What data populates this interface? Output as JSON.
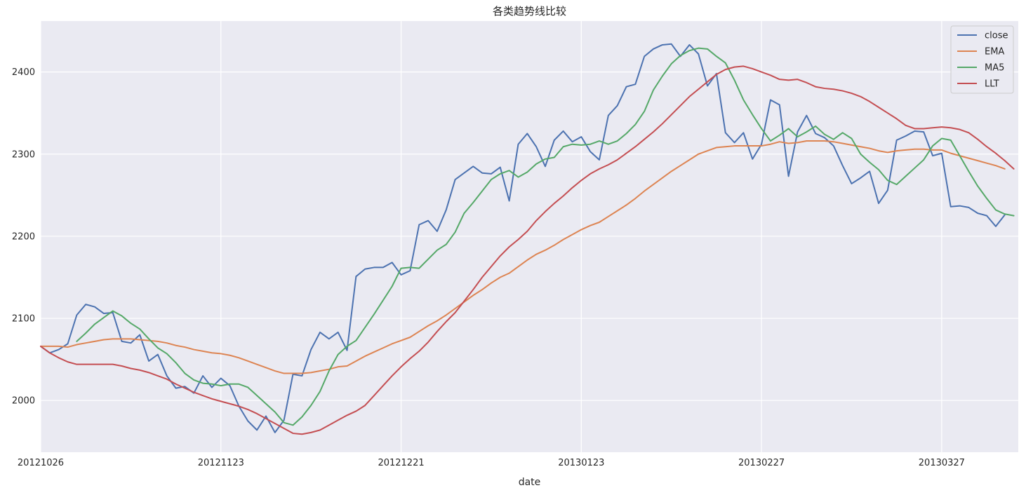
{
  "chart_data": {
    "type": "line",
    "title": "各类趋势线比较",
    "xlabel": "date",
    "ylabel": "",
    "xlim": [
      0,
      108.5
    ],
    "ylim": [
      1937,
      2462
    ],
    "x_ticks": [
      {
        "index": 0,
        "label": "20121026"
      },
      {
        "index": 20,
        "label": "20121123"
      },
      {
        "index": 40,
        "label": "20121221"
      },
      {
        "index": 60,
        "label": "20130123"
      },
      {
        "index": 80,
        "label": "20130227"
      },
      {
        "index": 100,
        "label": "20130327"
      }
    ],
    "y_ticks": [
      2000,
      2100,
      2200,
      2300,
      2400
    ],
    "grid": true,
    "legend_position": "top-right",
    "colors": {
      "background": "#eaeaf2",
      "close": "#4c72b0",
      "EMA": "#dd8452",
      "MA5": "#55a868",
      "LLT": "#c44e52"
    },
    "series": [
      {
        "name": "close",
        "color": "#4c72b0",
        "start": 0,
        "values": [
          2066,
          2058,
          2062,
          2069,
          2104,
          2117,
          2114,
          2106,
          2107,
          2072,
          2070,
          2080,
          2048,
          2056,
          2030,
          2015,
          2017,
          2009,
          2030,
          2016,
          2027,
          2018,
          1993,
          1975,
          1964,
          1981,
          1961,
          1976,
          2032,
          2030,
          2062,
          2083,
          2075,
          2083,
          2061,
          2151,
          2160,
          2162,
          2162,
          2168,
          2153,
          2158,
          2214,
          2219,
          2206,
          2232,
          2269,
          2277,
          2285,
          2277,
          2276,
          2284,
          2243,
          2312,
          2325,
          2309,
          2285,
          2317,
          2328,
          2315,
          2321,
          2303,
          2293,
          2347,
          2359,
          2382,
          2385,
          2419,
          2428,
          2433,
          2434,
          2419,
          2433,
          2422,
          2383,
          2398,
          2326,
          2314,
          2326,
          2294,
          2312,
          2366,
          2360,
          2273,
          2327,
          2347,
          2325,
          2320,
          2310,
          2286,
          2264,
          2271,
          2279,
          2240,
          2256,
          2317,
          2322,
          2328,
          2327,
          2298,
          2301,
          2236,
          2237,
          2235,
          2228,
          2225,
          2212,
          2226
        ]
      },
      {
        "name": "EMA",
        "color": "#dd8452",
        "start": 0,
        "values": [
          2066,
          2066,
          2066,
          2065,
          2068,
          2070,
          2072,
          2074,
          2075,
          2075,
          2075,
          2074,
          2073,
          2072,
          2070,
          2067,
          2065,
          2062,
          2060,
          2058,
          2057,
          2055,
          2052,
          2048,
          2044,
          2040,
          2036,
          2033,
          2033,
          2033,
          2034,
          2036,
          2038,
          2041,
          2042,
          2048,
          2054,
          2059,
          2064,
          2069,
          2073,
          2077,
          2084,
          2091,
          2097,
          2104,
          2112,
          2120,
          2128,
          2135,
          2143,
          2150,
          2155,
          2163,
          2171,
          2178,
          2183,
          2189,
          2196,
          2202,
          2208,
          2213,
          2217,
          2224,
          2231,
          2238,
          2246,
          2255,
          2263,
          2271,
          2279,
          2286,
          2293,
          2300,
          2304,
          2308,
          2309,
          2310,
          2310,
          2310,
          2310,
          2312,
          2315,
          2313,
          2314,
          2316,
          2316,
          2316,
          2315,
          2313,
          2311,
          2309,
          2307,
          2304,
          2302,
          2304,
          2305,
          2306,
          2306,
          2305,
          2305,
          2301,
          2298,
          2295,
          2292,
          2289,
          2286,
          2282
        ]
      },
      {
        "name": "MA5",
        "color": "#55a868",
        "start": 4,
        "values": [
          2072,
          2082,
          2093,
          2101,
          2109,
          2103,
          2094,
          2087,
          2075,
          2064,
          2057,
          2046,
          2033,
          2025,
          2021,
          2020,
          2018,
          2020,
          2020,
          2016,
          2006,
          1996,
          1986,
          1973,
          1970,
          1980,
          1994,
          2011,
          2036,
          2056,
          2066,
          2073,
          2089,
          2105,
          2122,
          2139,
          2161,
          2162,
          2161,
          2172,
          2183,
          2190,
          2205,
          2228,
          2241,
          2255,
          2269,
          2276,
          2280,
          2272,
          2278,
          2288,
          2294,
          2296,
          2309,
          2312,
          2311,
          2312,
          2316,
          2312,
          2316,
          2325,
          2336,
          2352,
          2378,
          2395,
          2410,
          2420,
          2426,
          2429,
          2428,
          2419,
          2411,
          2390,
          2366,
          2348,
          2331,
          2316,
          2323,
          2331,
          2321,
          2327,
          2334,
          2324,
          2318,
          2326,
          2319,
          2300,
          2290,
          2281,
          2268,
          2263,
          2273,
          2283,
          2293,
          2310,
          2319,
          2317,
          2298,
          2279,
          2261,
          2246,
          2232,
          2227,
          2225
        ]
      },
      {
        "name": "LLT",
        "color": "#c44e52",
        "start": 0,
        "values": [
          2066,
          2058,
          2052,
          2047,
          2044,
          2044,
          2044,
          2044,
          2044,
          2042,
          2039,
          2037,
          2034,
          2030,
          2026,
          2020,
          2015,
          2010,
          2006,
          2002,
          1999,
          1996,
          1993,
          1989,
          1984,
          1978,
          1972,
          1966,
          1960,
          1959,
          1961,
          1964,
          1970,
          1976,
          1982,
          1987,
          1994,
          2006,
          2018,
          2030,
          2041,
          2051,
          2060,
          2071,
          2084,
          2096,
          2107,
          2121,
          2135,
          2150,
          2163,
          2176,
          2187,
          2196,
          2206,
          2219,
          2230,
          2240,
          2249,
          2259,
          2268,
          2276,
          2282,
          2287,
          2293,
          2301,
          2309,
          2318,
          2327,
          2337,
          2348,
          2359,
          2370,
          2379,
          2388,
          2397,
          2403,
          2406,
          2407,
          2404,
          2400,
          2396,
          2391,
          2390,
          2391,
          2387,
          2382,
          2380,
          2379,
          2377,
          2374,
          2370,
          2364,
          2357,
          2350,
          2343,
          2335,
          2331,
          2331,
          2332,
          2333,
          2332,
          2330,
          2326,
          2318,
          2309,
          2301,
          2292,
          2282
        ]
      }
    ]
  }
}
